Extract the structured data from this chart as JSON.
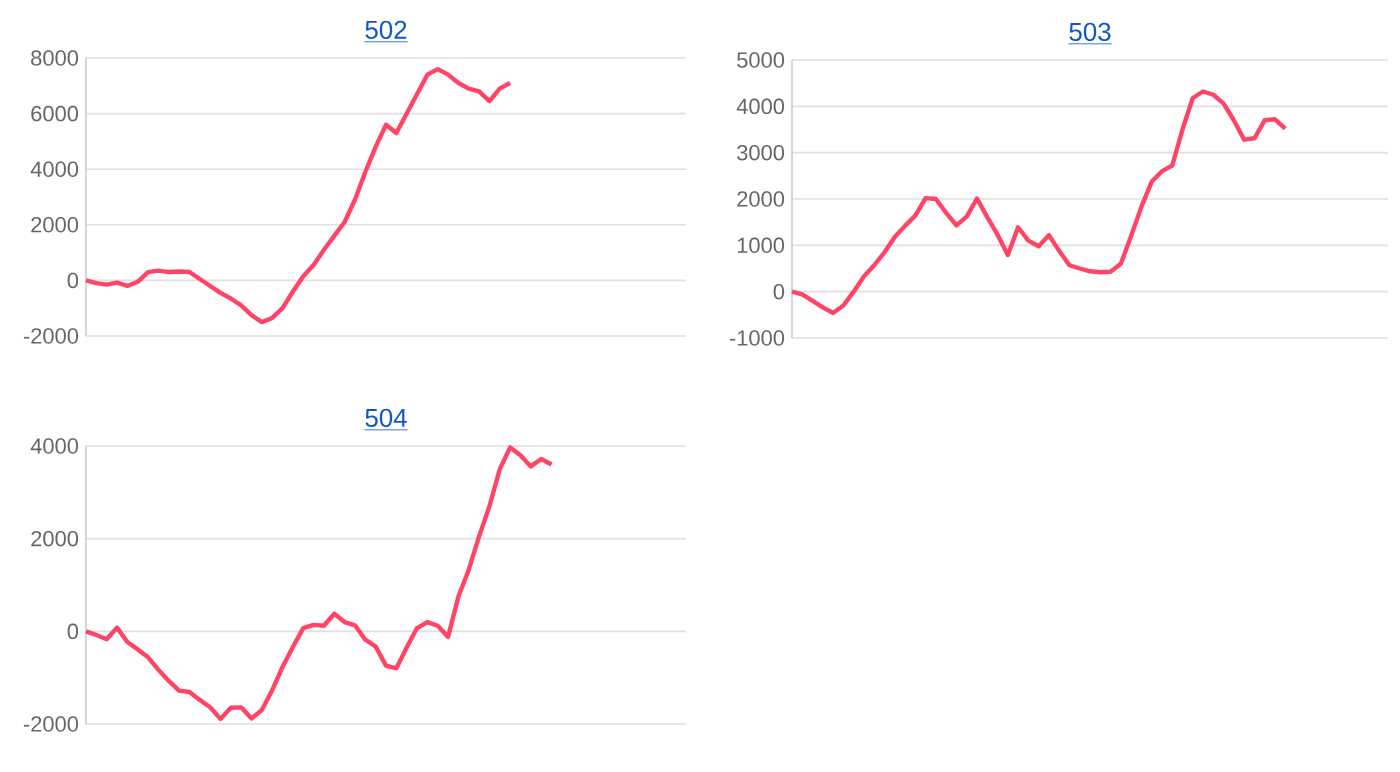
{
  "chart_data": [
    {
      "type": "line",
      "title": "502",
      "categories": [
        null,
        null,
        null,
        null,
        null,
        null,
        null,
        null,
        null,
        null,
        null,
        null,
        null,
        null,
        null,
        null,
        null,
        null,
        null,
        null,
        null,
        null,
        null,
        null,
        null,
        null,
        null,
        null,
        null,
        null,
        null,
        null,
        null,
        null,
        null,
        null,
        null,
        null,
        null,
        null,
        null,
        null,
        null,
        null,
        null,
        null,
        null,
        null,
        null,
        null,
        null,
        null,
        null,
        null,
        null,
        null,
        null,
        null,
        null
      ],
      "series": [
        {
          "color": "#ff4466",
          "values": [
            0,
            -100,
            -150,
            -80,
            -200,
            -50,
            300,
            350,
            300,
            320,
            300,
            50,
            -200,
            -450,
            -650,
            -900,
            -1250,
            -1500,
            -1350,
            -1000,
            -400,
            150,
            550,
            1100,
            1600,
            2100,
            2900,
            3900,
            4800,
            5600,
            5300,
            6000,
            6700,
            7400,
            7600,
            7400,
            7100,
            6900,
            6800,
            6450,
            6900,
            7100,
            null,
            null,
            null,
            null,
            null,
            null,
            null,
            null,
            null,
            null,
            null,
            null,
            null,
            null,
            null,
            null,
            null
          ]
        }
      ],
      "ylim": [
        -2000,
        8000
      ],
      "yticks": [
        -2000,
        0,
        2000,
        4000,
        6000,
        8000
      ],
      "grid": "y",
      "tick_labels": "y",
      "marker": "none",
      "line_style": "solid"
    },
    {
      "type": "line",
      "title": "503",
      "categories": [
        null,
        null,
        null,
        null,
        null,
        null,
        null,
        null,
        null,
        null,
        null,
        null,
        null,
        null,
        null,
        null,
        null,
        null,
        null,
        null,
        null,
        null,
        null,
        null,
        null,
        null,
        null,
        null,
        null,
        null,
        null,
        null,
        null,
        null,
        null,
        null,
        null,
        null,
        null,
        null,
        null,
        null,
        null,
        null,
        null,
        null,
        null,
        null,
        null,
        null,
        null,
        null,
        null,
        null,
        null,
        null,
        null,
        null,
        null
      ],
      "series": [
        {
          "color": "#ff4466",
          "values": [
            0,
            -60,
            -200,
            -340,
            -460,
            -300,
            0,
            330,
            570,
            850,
            1180,
            1420,
            1640,
            2020,
            2000,
            1700,
            1430,
            1620,
            2010,
            1610,
            1230,
            790,
            1390,
            1100,
            980,
            1220,
            880,
            570,
            500,
            440,
            420,
            430,
            600,
            1200,
            1830,
            2370,
            2600,
            2720,
            3500,
            4180,
            4320,
            4250,
            4060,
            3700,
            3280,
            3310,
            3700,
            3720,
            3520,
            null,
            null,
            null,
            null,
            null,
            null,
            null,
            null,
            null,
            null
          ]
        }
      ],
      "ylim": [
        -1000,
        5000
      ],
      "yticks": [
        -1000,
        0,
        1000,
        2000,
        3000,
        4000,
        5000
      ],
      "grid": "y",
      "tick_labels": "y",
      "marker": "none",
      "line_style": "solid"
    },
    {
      "type": "line",
      "title": "504",
      "categories": [
        null,
        null,
        null,
        null,
        null,
        null,
        null,
        null,
        null,
        null,
        null,
        null,
        null,
        null,
        null,
        null,
        null,
        null,
        null,
        null,
        null,
        null,
        null,
        null,
        null,
        null,
        null,
        null,
        null,
        null,
        null,
        null,
        null,
        null,
        null,
        null,
        null,
        null,
        null,
        null,
        null,
        null,
        null,
        null,
        null,
        null,
        null,
        null,
        null,
        null,
        null,
        null,
        null,
        null,
        null,
        null,
        null,
        null,
        null
      ],
      "series": [
        {
          "color": "#ff4466",
          "values": [
            0,
            -80,
            -170,
            80,
            -230,
            -390,
            -560,
            -830,
            -1070,
            -1280,
            -1310,
            -1480,
            -1640,
            -1890,
            -1650,
            -1640,
            -1880,
            -1700,
            -1270,
            -770,
            -340,
            70,
            140,
            120,
            380,
            200,
            130,
            -180,
            -330,
            -740,
            -800,
            -350,
            70,
            200,
            120,
            -120,
            750,
            1330,
            2050,
            2700,
            3500,
            3970,
            3800,
            3560,
            3720,
            3600,
            null,
            null,
            null,
            null,
            null,
            null,
            null,
            null,
            null,
            null,
            null,
            null,
            null
          ]
        }
      ],
      "ylim": [
        -2000,
        4000
      ],
      "yticks": [
        -2000,
        0,
        2000,
        4000
      ],
      "grid": "y",
      "tick_labels": "y",
      "marker": "none",
      "line_style": "solid"
    }
  ]
}
